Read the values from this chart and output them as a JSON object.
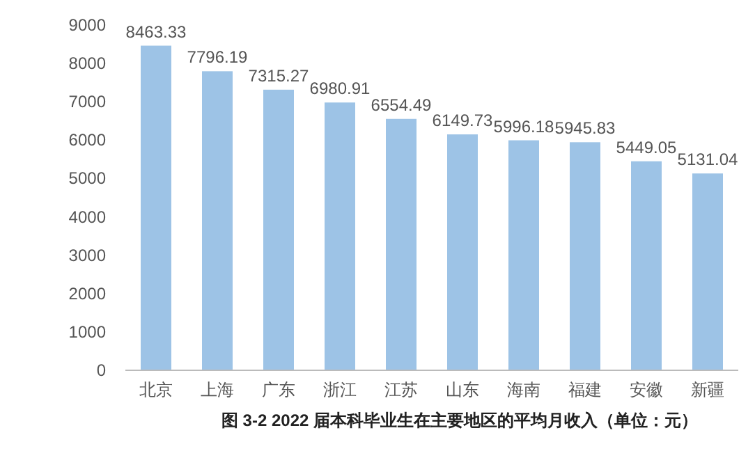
{
  "chart_data": {
    "type": "bar",
    "title": "图 3-2   2022 届本科毕业生在主要地区的平均月收入（单位：元）",
    "categories": [
      "北京",
      "上海",
      "广东",
      "浙江",
      "江苏",
      "山东",
      "海南",
      "福建",
      "安徽",
      "新疆"
    ],
    "values": [
      8463.33,
      7796.19,
      7315.27,
      6980.91,
      6554.49,
      6149.73,
      5996.18,
      5945.83,
      5449.05,
      5131.04
    ],
    "color": "#9dc3e6",
    "ylim": [
      0,
      9000
    ],
    "yticks": [
      0,
      1000,
      2000,
      3000,
      4000,
      5000,
      6000,
      7000,
      8000,
      9000
    ],
    "data_labels": true
  }
}
